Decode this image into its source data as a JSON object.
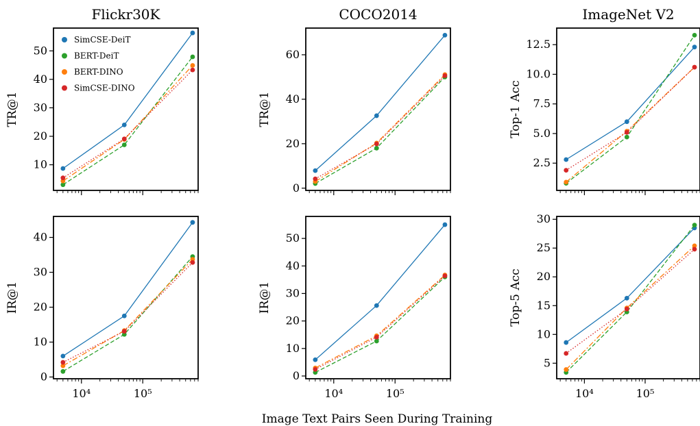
{
  "figure": {
    "xlabel": "Image Text Pairs Seen During Training"
  },
  "chart_data": [
    {
      "type": "line",
      "title": "Flickr30K",
      "ylabel": "TR@1",
      "xscale": "log",
      "xlim": [
        3500,
        800000
      ],
      "ylim": [
        1,
        58
      ],
      "yticks": [
        10,
        20,
        30,
        40,
        50
      ],
      "ytick_labels": [
        "10",
        "20",
        "30",
        "40",
        "50"
      ],
      "xticks": [
        10000,
        100000
      ],
      "show_xtick_labels": false,
      "legend": {
        "placement": "top-left"
      },
      "x": [
        5000,
        50000,
        650000
      ],
      "series": [
        {
          "name": "SimCSE-DeiT",
          "color": "#1f77b4",
          "dash": "solid",
          "values": [
            8.7,
            24.0,
            56.3
          ]
        },
        {
          "name": "BERT-DeiT",
          "color": "#2ca02c",
          "dash": "dashed",
          "values": [
            3.0,
            17.0,
            47.9
          ]
        },
        {
          "name": "BERT-DINO",
          "color": "#ff7f0e",
          "dash": "dashdot",
          "values": [
            4.3,
            18.9,
            44.9
          ]
        },
        {
          "name": "SimCSE-DINO",
          "color": "#d62728",
          "dash": "dotted",
          "values": [
            5.4,
            19.1,
            43.3
          ]
        }
      ]
    },
    {
      "type": "line",
      "title": "COCO2014",
      "ylabel": "TR@1",
      "xscale": "log",
      "xlim": [
        3500,
        800000
      ],
      "ylim": [
        -1,
        72
      ],
      "yticks": [
        0,
        20,
        40,
        60
      ],
      "ytick_labels": [
        "0",
        "20",
        "40",
        "60"
      ],
      "xticks": [
        10000,
        100000
      ],
      "show_xtick_labels": false,
      "x": [
        5000,
        50000,
        650000
      ],
      "series": [
        {
          "color": "#1f77b4",
          "dash": "solid",
          "values": [
            7.9,
            32.6,
            68.8
          ]
        },
        {
          "color": "#2ca02c",
          "dash": "dashed",
          "values": [
            2.1,
            18.0,
            50.0
          ]
        },
        {
          "color": "#ff7f0e",
          "dash": "dashdot",
          "values": [
            3.0,
            20.3,
            51.1
          ]
        },
        {
          "color": "#d62728",
          "dash": "dotted",
          "values": [
            4.2,
            19.9,
            50.6
          ]
        }
      ]
    },
    {
      "type": "line",
      "title": "ImageNet V2",
      "ylabel": "Top-1 Acc",
      "xscale": "log",
      "xlim": [
        3500,
        800000
      ],
      "ylim": [
        0.2,
        13.9
      ],
      "yticks": [
        2.5,
        5.0,
        7.5,
        10.0,
        12.5
      ],
      "ytick_labels": [
        "2.5",
        "5.0",
        "7.5",
        "10.0",
        "12.5"
      ],
      "xticks": [
        10000,
        100000
      ],
      "show_xtick_labels": false,
      "x": [
        5000,
        50000,
        650000
      ],
      "series": [
        {
          "color": "#1f77b4",
          "dash": "solid",
          "values": [
            2.8,
            6.0,
            12.3
          ]
        },
        {
          "color": "#2ca02c",
          "dash": "dashed",
          "values": [
            0.8,
            4.7,
            13.3
          ]
        },
        {
          "color": "#ff7f0e",
          "dash": "dashdot",
          "values": [
            0.9,
            5.2,
            10.6
          ]
        },
        {
          "color": "#d62728",
          "dash": "dotted",
          "values": [
            1.9,
            5.1,
            10.6
          ]
        }
      ]
    },
    {
      "type": "line",
      "ylabel": "IR@1",
      "xscale": "log",
      "xlim": [
        3500,
        800000
      ],
      "ylim": [
        -0.5,
        46
      ],
      "yticks": [
        0,
        10,
        20,
        30,
        40
      ],
      "ytick_labels": [
        "0",
        "10",
        "20",
        "30",
        "40"
      ],
      "xticks": [
        10000,
        100000
      ],
      "xtick_labels": [
        "10⁴",
        "10⁵"
      ],
      "show_xtick_labels": true,
      "x": [
        5000,
        50000,
        650000
      ],
      "series": [
        {
          "color": "#1f77b4",
          "dash": "solid",
          "values": [
            6.0,
            17.5,
            44.3
          ]
        },
        {
          "color": "#2ca02c",
          "dash": "dashed",
          "values": [
            1.6,
            12.2,
            34.5
          ]
        },
        {
          "color": "#ff7f0e",
          "dash": "dashdot",
          "values": [
            3.2,
            13.3,
            33.7
          ]
        },
        {
          "color": "#d62728",
          "dash": "dotted",
          "values": [
            4.2,
            13.1,
            32.8
          ]
        }
      ]
    },
    {
      "type": "line",
      "ylabel": "IR@1",
      "xscale": "log",
      "xlim": [
        3500,
        800000
      ],
      "ylim": [
        -1,
        58
      ],
      "yticks": [
        0,
        10,
        20,
        30,
        40,
        50
      ],
      "ytick_labels": [
        "0",
        "10",
        "20",
        "30",
        "40",
        "50"
      ],
      "xticks": [
        10000,
        100000
      ],
      "xtick_labels": [
        "10⁴",
        "10⁵"
      ],
      "show_xtick_labels": true,
      "x": [
        5000,
        50000,
        650000
      ],
      "series": [
        {
          "color": "#1f77b4",
          "dash": "solid",
          "values": [
            5.9,
            25.6,
            55.0
          ]
        },
        {
          "color": "#2ca02c",
          "dash": "dashed",
          "values": [
            1.3,
            12.7,
            36.0
          ]
        },
        {
          "color": "#ff7f0e",
          "dash": "dashdot",
          "values": [
            2.9,
            14.6,
            36.7
          ]
        },
        {
          "color": "#d62728",
          "dash": "dotted",
          "values": [
            2.4,
            14.1,
            36.4
          ]
        }
      ]
    },
    {
      "type": "line",
      "ylabel": "Top-5 Acc",
      "xscale": "log",
      "xlim": [
        3500,
        800000
      ],
      "ylim": [
        2.3,
        30.5
      ],
      "yticks": [
        5,
        10,
        15,
        20,
        25,
        30
      ],
      "ytick_labels": [
        "5",
        "10",
        "15",
        "20",
        "25",
        "30"
      ],
      "xticks": [
        10000,
        100000
      ],
      "xtick_labels": [
        "10⁴",
        "10⁵"
      ],
      "show_xtick_labels": true,
      "x": [
        5000,
        50000,
        650000
      ],
      "series": [
        {
          "color": "#1f77b4",
          "dash": "solid",
          "values": [
            8.6,
            16.3,
            28.5
          ]
        },
        {
          "color": "#2ca02c",
          "dash": "dashed",
          "values": [
            3.4,
            13.9,
            29.0
          ]
        },
        {
          "color": "#ff7f0e",
          "dash": "dashdot",
          "values": [
            3.9,
            14.6,
            25.4
          ]
        },
        {
          "color": "#d62728",
          "dash": "dotted",
          "values": [
            6.7,
            14.4,
            24.8
          ]
        }
      ]
    }
  ]
}
